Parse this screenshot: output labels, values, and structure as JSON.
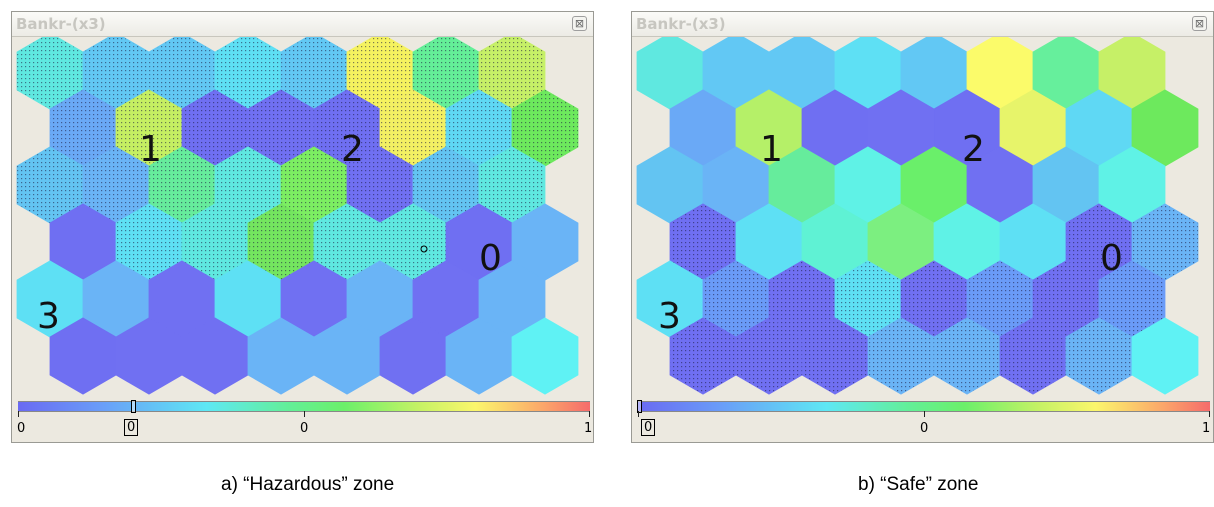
{
  "panels": [
    {
      "title": "Bankr-(x3)",
      "close_glyph": "⊠",
      "labels": [
        "1",
        "2",
        "0",
        "3"
      ],
      "scale_ticks": [
        "0",
        "0",
        "0",
        "1"
      ],
      "caption": "a) “Hazardous” zone",
      "hex_colors": [
        "#5fe8e0",
        "#62c8f4",
        "#62c8f4",
        "#5ee0f4",
        "#62c8f4",
        "#f5f25f",
        "#64ef98",
        "#c6f067",
        "#6aa9f6",
        "#c5ef62",
        "#6f6ff2",
        "#7070f2",
        "#6f6ff2",
        "#f3f063",
        "#5fd8f4",
        "#6de95d",
        "#63c4f2",
        "#6ab4f6",
        "#66ec9c",
        "#5fe8e0",
        "#7cee62",
        "#7070f2",
        "#63c4f2",
        "#5fe8e0",
        "#6f6ff2",
        "#5ee0f4",
        "#5fe8e0",
        "#74e55f",
        "#5fe8e0",
        "#5fe8e0",
        "#6f6ff2",
        "#6ab4f6",
        "#5ee0f4",
        "#6ab4f6",
        "#7070f2",
        "#5ee0f4",
        "#7070f2",
        "#6ab4f6",
        "#7070f2",
        "#6ab4f6",
        "#6f6ff2",
        "#7070f2",
        "#7070f2",
        "#6ab4f6",
        "#6ab4f6",
        "#7070f2",
        "#6ab4f6",
        "#5ff2f4"
      ],
      "hex_texture": [
        1,
        1,
        1,
        1,
        1,
        1,
        1,
        1,
        1,
        1,
        1,
        1,
        1,
        1,
        1,
        1,
        1,
        1,
        1,
        1,
        1,
        1,
        1,
        1,
        0,
        1,
        1,
        1,
        1,
        1,
        0,
        0,
        0,
        0,
        0,
        0,
        0,
        0,
        0,
        0,
        0,
        0,
        0,
        0,
        0,
        0,
        0,
        0
      ]
    },
    {
      "title": "Bankr-(x3)",
      "close_glyph": "⊠",
      "labels": [
        "1",
        "2",
        "0",
        "3"
      ],
      "scale_ticks": [
        "0",
        "0",
        "1"
      ],
      "caption": "b) “Safe” zone",
      "hex_colors": [
        "#5fe8e0",
        "#62c8f4",
        "#62c8f4",
        "#5ee0f4",
        "#62c8f4",
        "#fbfb6a",
        "#66ef9c",
        "#c6f067",
        "#6aa9f6",
        "#b5f068",
        "#6f6ff2",
        "#7070f2",
        "#6f6ff2",
        "#e7f46a",
        "#5fd8f4",
        "#6de95d",
        "#63c4f2",
        "#6ab4f6",
        "#66ec9c",
        "#5ff2e6",
        "#6aef6a",
        "#7070f2",
        "#63c4f2",
        "#5ff2e6",
        "#6f6ff2",
        "#5ee0f4",
        "#5ff2d4",
        "#7cef80",
        "#5ff2e6",
        "#5ee0f4",
        "#6f6ff2",
        "#6ab4f6",
        "#5ee0f4",
        "#6a9bf8",
        "#7070f2",
        "#5ee0f4",
        "#7070f2",
        "#6a9bf8",
        "#7070f2",
        "#6a9bf8",
        "#6f6ff2",
        "#7070f2",
        "#7070f2",
        "#6ab4f6",
        "#6ab4f6",
        "#7070f2",
        "#6ab4f6",
        "#5ff2f4"
      ],
      "hex_texture": [
        0,
        0,
        0,
        0,
        0,
        0,
        0,
        0,
        0,
        0,
        0,
        0,
        0,
        0,
        0,
        0,
        0,
        0,
        0,
        0,
        0,
        0,
        0,
        0,
        1,
        0,
        0,
        0,
        0,
        0,
        1,
        1,
        0,
        1,
        1,
        1,
        1,
        1,
        1,
        1,
        1,
        1,
        1,
        1,
        1,
        1,
        1,
        0
      ]
    }
  ]
}
